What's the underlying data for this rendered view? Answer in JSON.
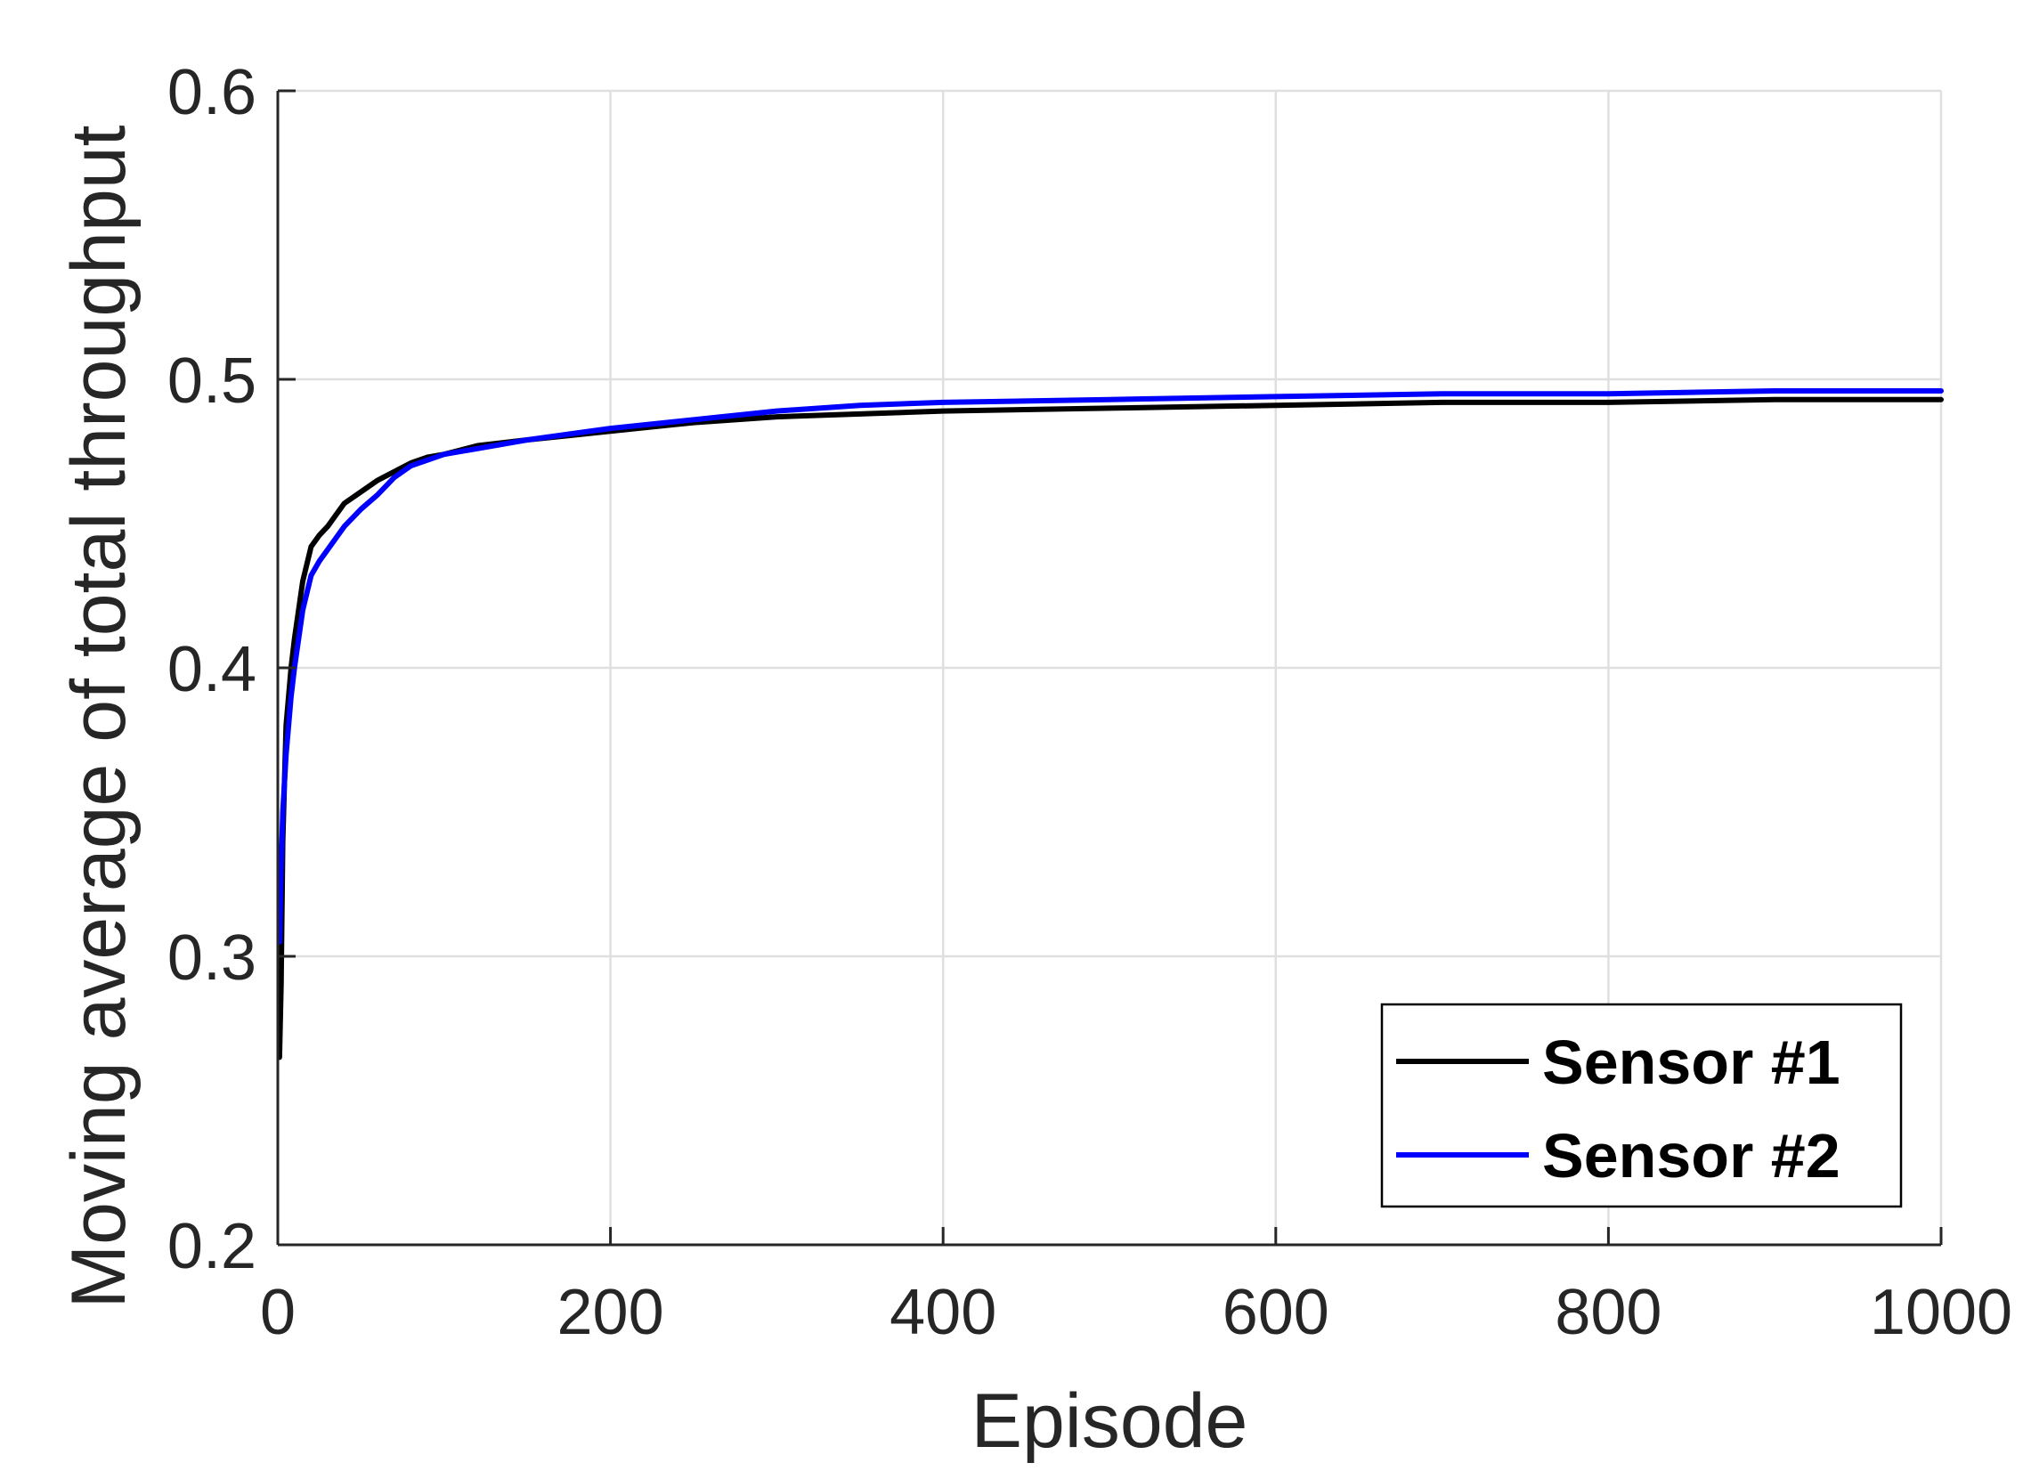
{
  "chart_data": {
    "type": "line",
    "title": "",
    "xlabel": "Episode",
    "ylabel": "Moving average of total throughput",
    "xlim": [
      0,
      1000
    ],
    "ylim": [
      0.2,
      0.6
    ],
    "xticks": [
      0,
      200,
      400,
      600,
      800,
      1000
    ],
    "yticks": [
      0.2,
      0.3,
      0.4,
      0.5,
      0.6
    ],
    "xtick_labels": [
      "0",
      "200",
      "400",
      "600",
      "800",
      "1000"
    ],
    "ytick_labels": [
      "0.2",
      "0.3",
      "0.4",
      "0.5",
      "0.6"
    ],
    "grid": true,
    "legend_position": "bottom-right",
    "series": [
      {
        "name": "Sensor #1",
        "color": "#000000",
        "x": [
          1,
          2,
          3,
          5,
          8,
          10,
          15,
          20,
          25,
          30,
          40,
          50,
          60,
          70,
          80,
          90,
          100,
          120,
          150,
          200,
          250,
          300,
          350,
          400,
          500,
          600,
          700,
          800,
          900,
          1000
        ],
        "y": [
          0.265,
          0.29,
          0.34,
          0.38,
          0.4,
          0.41,
          0.43,
          0.442,
          0.446,
          0.449,
          0.457,
          0.461,
          0.465,
          0.468,
          0.471,
          0.473,
          0.474,
          0.477,
          0.479,
          0.482,
          0.485,
          0.487,
          0.488,
          0.489,
          0.49,
          0.491,
          0.492,
          0.492,
          0.493,
          0.493
        ]
      },
      {
        "name": "Sensor #2",
        "color": "#0000ff",
        "x": [
          1,
          2,
          3,
          5,
          8,
          10,
          15,
          20,
          25,
          30,
          40,
          50,
          60,
          70,
          80,
          90,
          100,
          120,
          150,
          200,
          250,
          300,
          350,
          400,
          500,
          600,
          700,
          800,
          900,
          1000
        ],
        "y": [
          0.305,
          0.33,
          0.35,
          0.37,
          0.39,
          0.4,
          0.42,
          0.432,
          0.437,
          0.441,
          0.449,
          0.455,
          0.46,
          0.466,
          0.47,
          0.472,
          0.474,
          0.476,
          0.479,
          0.483,
          0.486,
          0.489,
          0.491,
          0.492,
          0.493,
          0.494,
          0.495,
          0.495,
          0.496,
          0.496
        ]
      }
    ]
  }
}
